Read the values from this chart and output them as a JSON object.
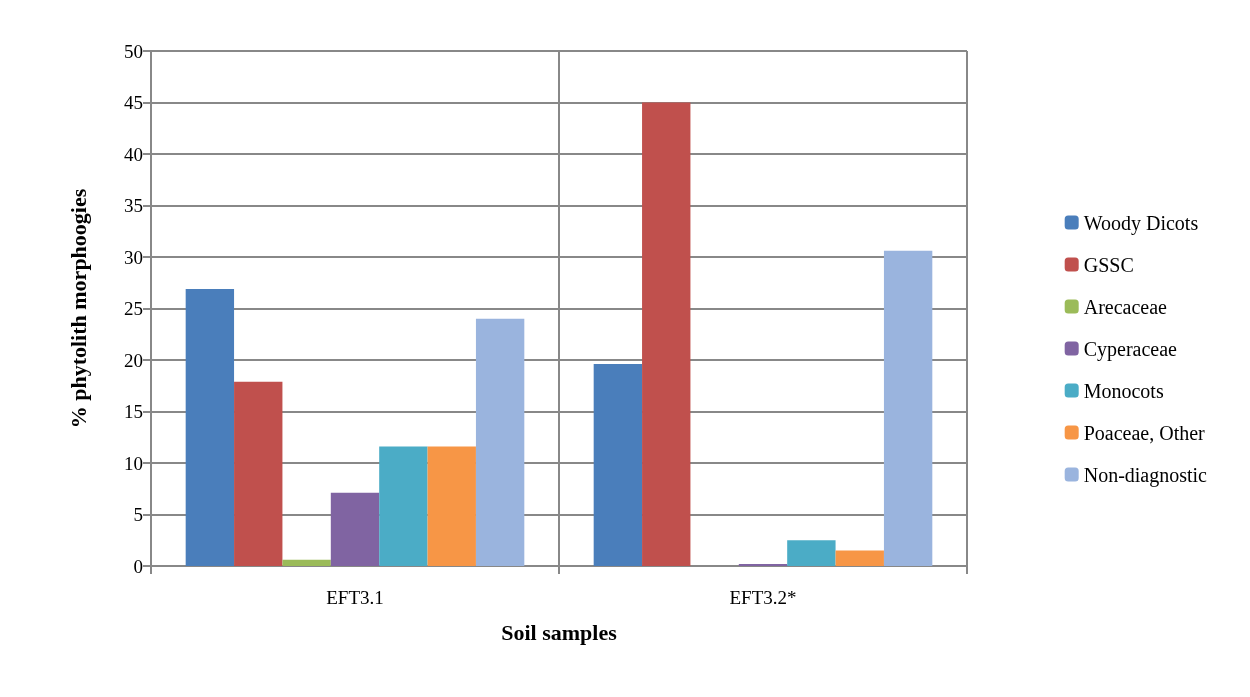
{
  "chart_data": {
    "type": "bar",
    "xlabel": "Soil samples",
    "ylabel": "% phytolith morphoogies",
    "categories": [
      "EFT3.1",
      "EFT3.2*"
    ],
    "series": [
      {
        "name": "Woody Dicots",
        "color": "#4a7ebb",
        "values": [
          26.9,
          19.6
        ]
      },
      {
        "name": "GSSC",
        "color": "#c0504d",
        "values": [
          17.9,
          45
        ]
      },
      {
        "name": "Arecaceae",
        "color": "#9bbb59",
        "values": [
          0.6,
          0
        ]
      },
      {
        "name": "Cyperaceae",
        "color": "#8064a2",
        "values": [
          7.1,
          0.2
        ]
      },
      {
        "name": "Monocots",
        "color": "#4bacc6",
        "values": [
          11.6,
          2.5
        ]
      },
      {
        "name": "Poaceae, Other",
        "color": "#f79646",
        "values": [
          11.6,
          1.5
        ]
      },
      {
        "name": "Non-diagnostic",
        "color": "#9ab4de",
        "values": [
          24,
          30.6
        ]
      }
    ],
    "ylim": [
      0,
      50
    ],
    "yticks": [
      0,
      5,
      10,
      15,
      20,
      25,
      30,
      35,
      40,
      45,
      50
    ],
    "grid": true,
    "legend": "right"
  }
}
